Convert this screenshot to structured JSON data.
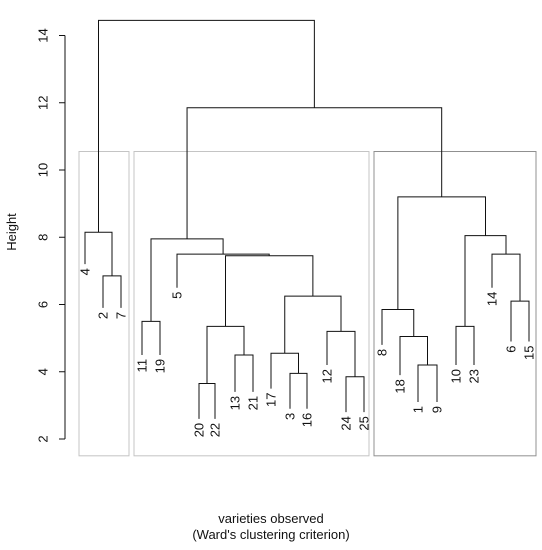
{
  "chart_data": {
    "type": "dendrogram",
    "title": "",
    "ylabel": "Height",
    "xlabel": "varieties observed",
    "sublabel": "(Ward's clustering criterion)",
    "ylim": [
      1.8,
      15.1
    ],
    "yticks": [
      2,
      4,
      6,
      8,
      10,
      12,
      14
    ],
    "leaves": [
      {
        "label": "4",
        "leafHeight": 7.2
      },
      {
        "label": "2",
        "leafHeight": 5.9
      },
      {
        "label": "7",
        "leafHeight": 5.9
      },
      {
        "label": "11",
        "leafHeight": 4.5
      },
      {
        "label": "19",
        "leafHeight": 4.5
      },
      {
        "label": "5",
        "leafHeight": 6.5
      },
      {
        "label": "20",
        "leafHeight": 2.6
      },
      {
        "label": "22",
        "leafHeight": 2.6
      },
      {
        "label": "13",
        "leafHeight": 3.4
      },
      {
        "label": "21",
        "leafHeight": 3.4
      },
      {
        "label": "17",
        "leafHeight": 3.5
      },
      {
        "label": "3",
        "leafHeight": 2.9
      },
      {
        "label": "16",
        "leafHeight": 2.9
      },
      {
        "label": "12",
        "leafHeight": 4.2
      },
      {
        "label": "24",
        "leafHeight": 2.8
      },
      {
        "label": "25",
        "leafHeight": 2.8
      },
      {
        "label": "8",
        "leafHeight": 4.8
      },
      {
        "label": "18",
        "leafHeight": 3.9
      },
      {
        "label": "1",
        "leafHeight": 3.1
      },
      {
        "label": "9",
        "leafHeight": 3.1
      },
      {
        "label": "10",
        "leafHeight": 4.2
      },
      {
        "label": "23",
        "leafHeight": 4.2
      },
      {
        "label": "14",
        "leafHeight": 6.5
      },
      {
        "label": "6",
        "leafHeight": 4.9
      },
      {
        "label": "15",
        "leafHeight": 4.9
      }
    ],
    "merges": [
      {
        "height": 6.85,
        "left": 1,
        "right": 2
      },
      {
        "height": 8.15,
        "left": 0,
        "right": "m0"
      },
      {
        "height": 5.5,
        "left": 3,
        "right": 4
      },
      {
        "height": 3.65,
        "left": 6,
        "right": 7
      },
      {
        "height": 4.5,
        "left": 8,
        "right": 9
      },
      {
        "height": 5.35,
        "left": "m3",
        "right": "m4"
      },
      {
        "height": 3.95,
        "left": 11,
        "right": 12
      },
      {
        "height": 4.55,
        "left": 10,
        "right": "m6"
      },
      {
        "height": 3.85,
        "left": 14,
        "right": 15
      },
      {
        "height": 5.2,
        "left": 13,
        "right": "m8"
      },
      {
        "height": 6.25,
        "left": "m7",
        "right": "m9"
      },
      {
        "height": 7.45,
        "left": "m5",
        "right": "m10"
      },
      {
        "height": 7.5,
        "left": 5,
        "right": "m11"
      },
      {
        "height": 7.95,
        "left": "m2",
        "right": "m12"
      },
      {
        "height": 4.2,
        "left": 18,
        "right": 19
      },
      {
        "height": 5.05,
        "left": 17,
        "right": "m14"
      },
      {
        "height": 5.85,
        "left": 16,
        "right": "m15"
      },
      {
        "height": 5.35,
        "left": 20,
        "right": 21
      },
      {
        "height": 6.1,
        "left": 23,
        "right": 24
      },
      {
        "height": 7.5,
        "left": 22,
        "right": "m18"
      },
      {
        "height": 8.05,
        "left": "m17",
        "right": "m19"
      },
      {
        "height": 9.2,
        "left": "m16",
        "right": "m20"
      },
      {
        "height": 11.85,
        "left": "m13",
        "right": "m21"
      },
      {
        "height": 14.45,
        "left": "m1",
        "right": "m22"
      }
    ],
    "cluster_boxes": [
      {
        "from": 0,
        "to": 2
      },
      {
        "from": 3,
        "to": 15
      },
      {
        "from": 16,
        "to": 24
      }
    ],
    "box_top": 10.55,
    "box_bottom": 1.5
  }
}
